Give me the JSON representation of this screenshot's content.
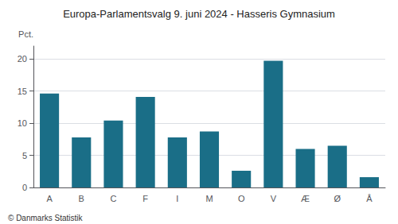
{
  "chart_data": {
    "type": "bar",
    "title": "Europa-Parlamentsvalg 9. juni 2024 - Hasseris Gymnasium",
    "ylabel": "Pct.",
    "annotations": [
      "© Danmarks Statistik"
    ],
    "categories": [
      "A",
      "B",
      "C",
      "F",
      "I",
      "M",
      "O",
      "V",
      "Æ",
      "Ø",
      "Å"
    ],
    "values": [
      14.6,
      7.8,
      10.4,
      14.1,
      7.8,
      8.7,
      2.6,
      19.7,
      6.0,
      6.5,
      1.6
    ],
    "color": "#1a6e87",
    "ylim": [
      0,
      22
    ],
    "yticks": [
      0,
      5,
      10,
      15,
      20
    ],
    "grid": true
  }
}
